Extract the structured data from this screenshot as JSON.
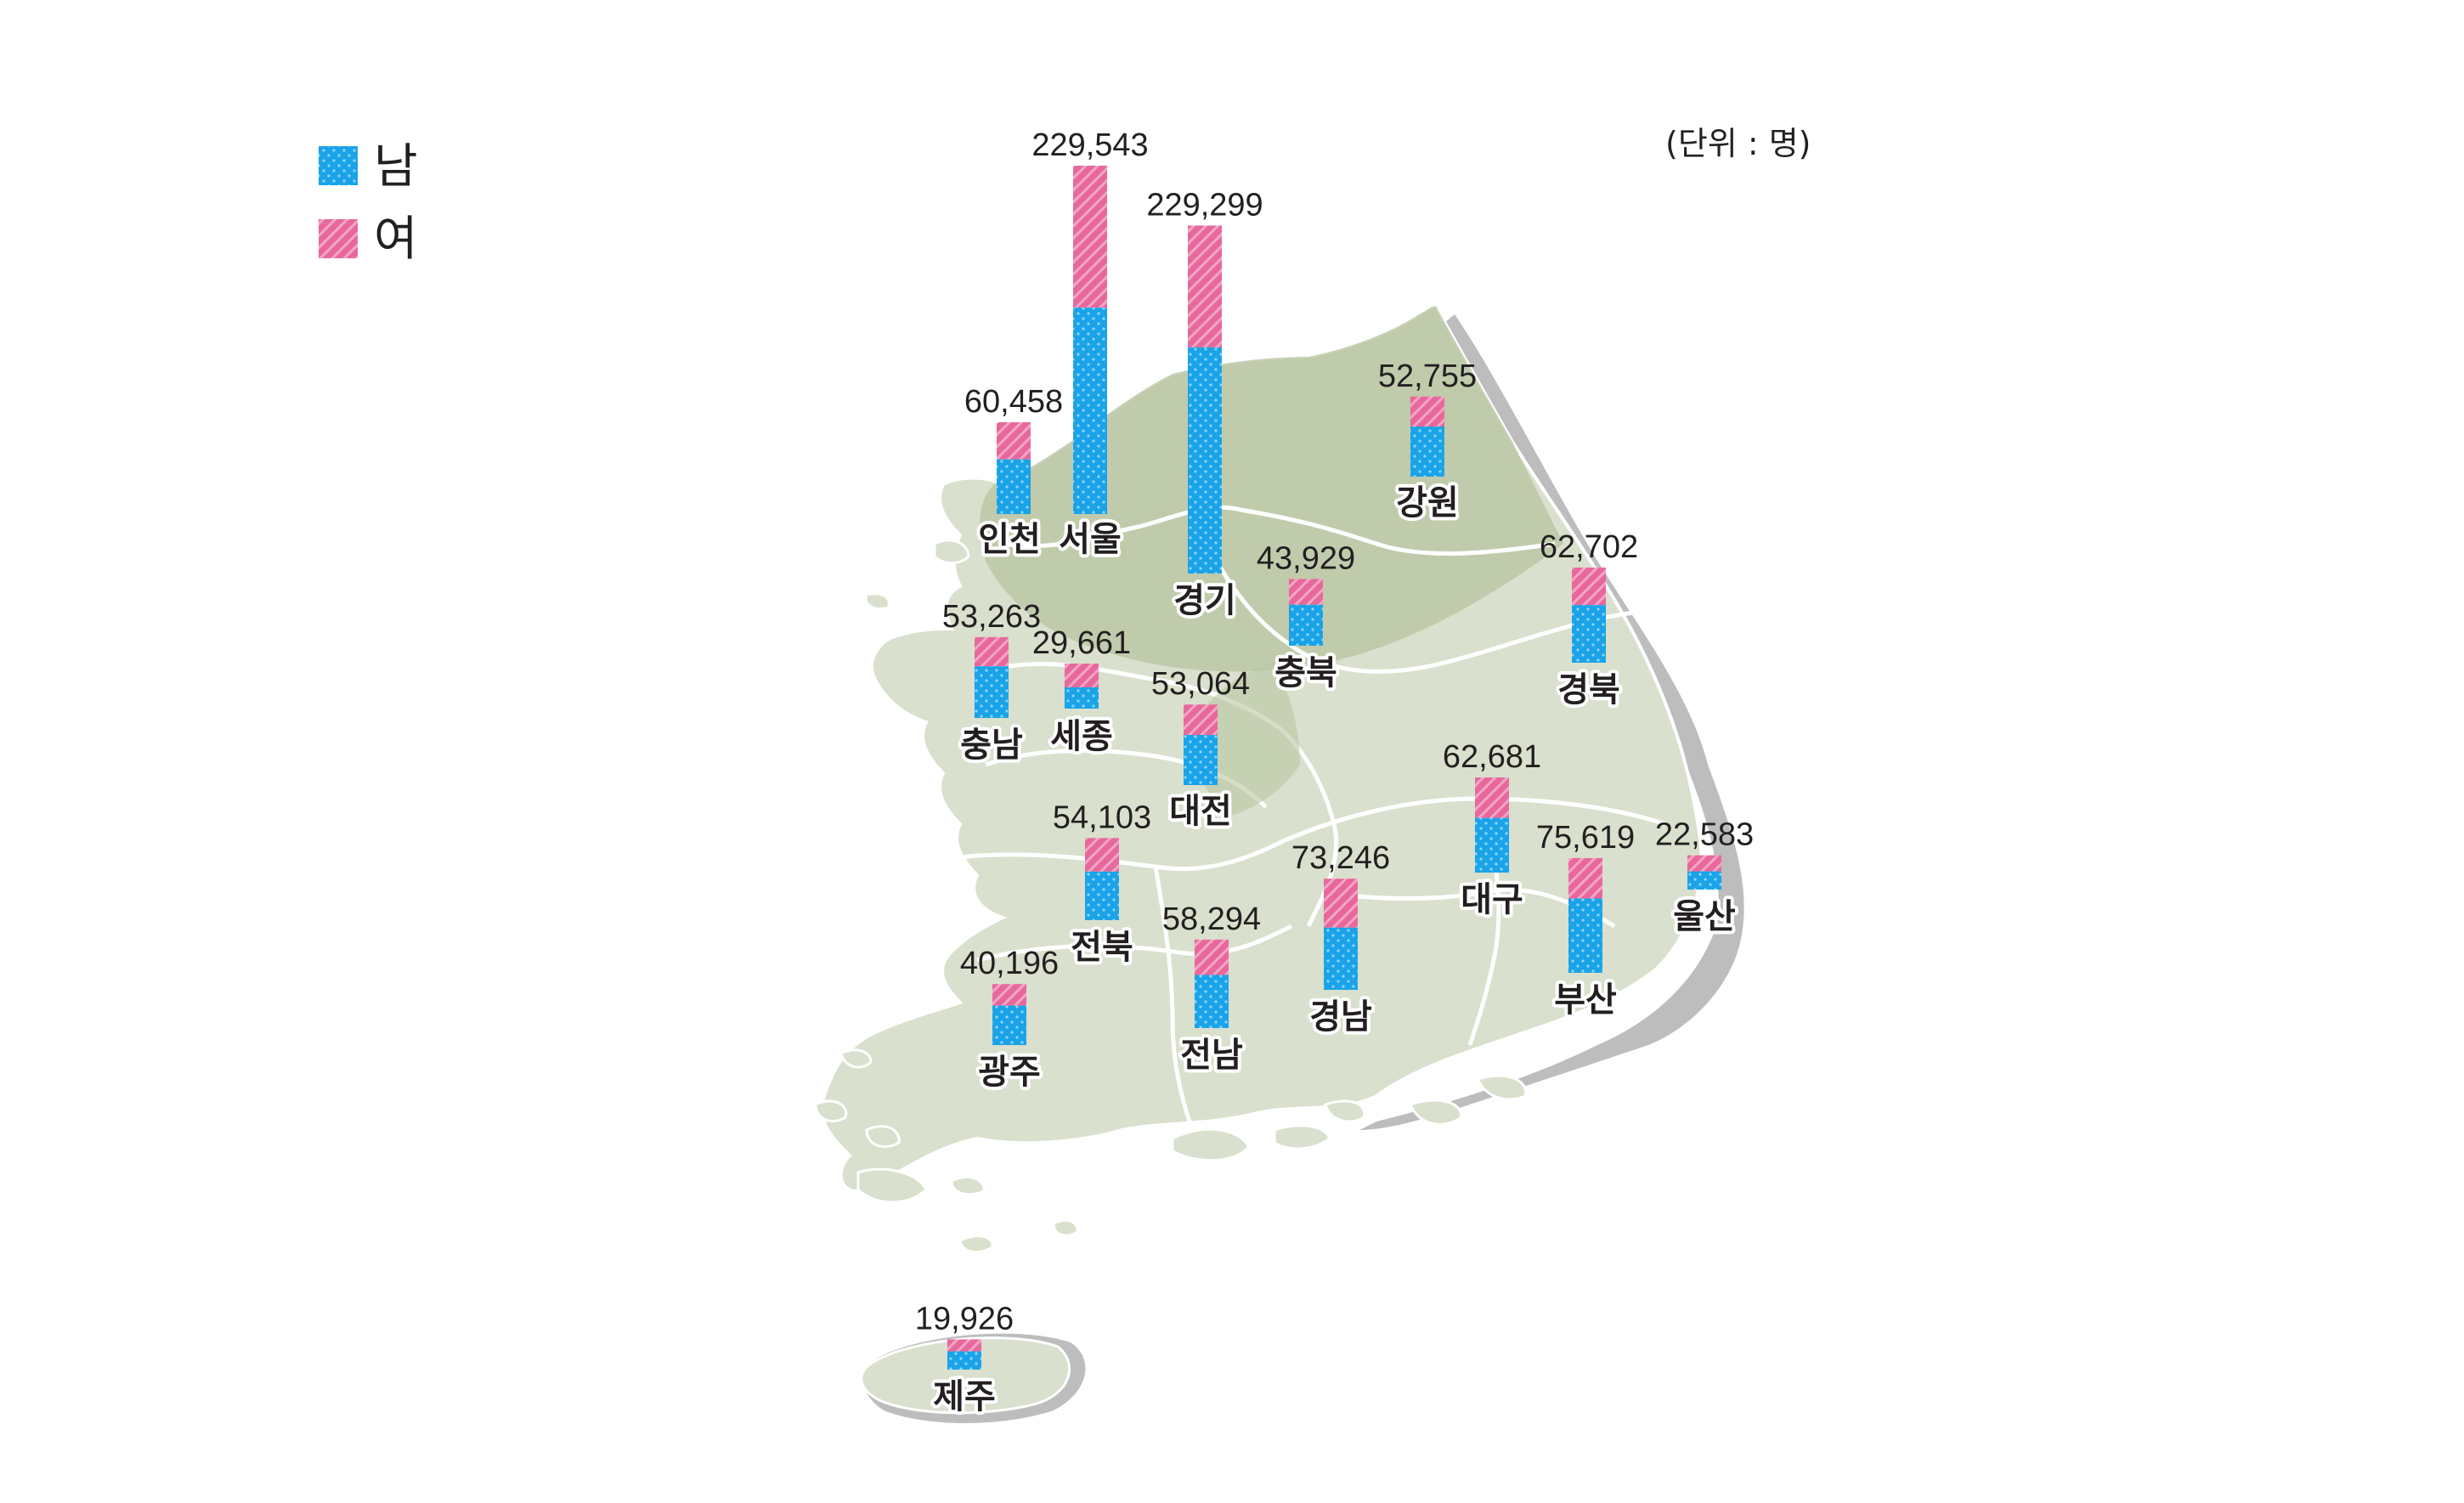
{
  "chart_data": {
    "type": "bar",
    "subtype": "stacked-bar-on-map",
    "unit_label": "(단위 : 명)",
    "legend": [
      {
        "label": "남",
        "color": "#1aa3e8",
        "pattern": "dots"
      },
      {
        "label": "여",
        "color": "#e8689c",
        "pattern": "diagonal-stripes"
      }
    ],
    "series_names": [
      "남",
      "여"
    ],
    "bars": [
      {
        "region": "서울",
        "total": 229543,
        "total_label": "229,543",
        "male": 136000
      },
      {
        "region": "경기",
        "total": 229299,
        "total_label": "229,299",
        "male": 149000
      },
      {
        "region": "인천",
        "total": 60458,
        "total_label": "60,458",
        "male": 36000
      },
      {
        "region": "강원",
        "total": 52755,
        "total_label": "52,755",
        "male": 33000
      },
      {
        "region": "충북",
        "total": 43929,
        "total_label": "43,929",
        "male": 27000
      },
      {
        "region": "경북",
        "total": 62702,
        "total_label": "62,702",
        "male": 38000
      },
      {
        "region": "충남",
        "total": 53263,
        "total_label": "53,263",
        "male": 34000
      },
      {
        "region": "세종",
        "total": 29661,
        "total_label": "29,661",
        "male": 14000
      },
      {
        "region": "대전",
        "total": 53064,
        "total_label": "53,064",
        "male": 33000
      },
      {
        "region": "대구",
        "total": 62681,
        "total_label": "62,681",
        "male": 36000
      },
      {
        "region": "전북",
        "total": 54103,
        "total_label": "54,103",
        "male": 32000
      },
      {
        "region": "경남",
        "total": 73246,
        "total_label": "73,246",
        "male": 41000
      },
      {
        "region": "부산",
        "total": 75619,
        "total_label": "75,619",
        "male": 49000
      },
      {
        "region": "울산",
        "total": 22583,
        "total_label": "22,583",
        "male": 12000
      },
      {
        "region": "전남",
        "total": 58294,
        "total_label": "58,294",
        "male": 35000
      },
      {
        "region": "광주",
        "total": 40196,
        "total_label": "40,196",
        "male": 26000
      },
      {
        "region": "제주",
        "total": 19926,
        "total_label": "19,926",
        "male": 12000
      }
    ]
  }
}
